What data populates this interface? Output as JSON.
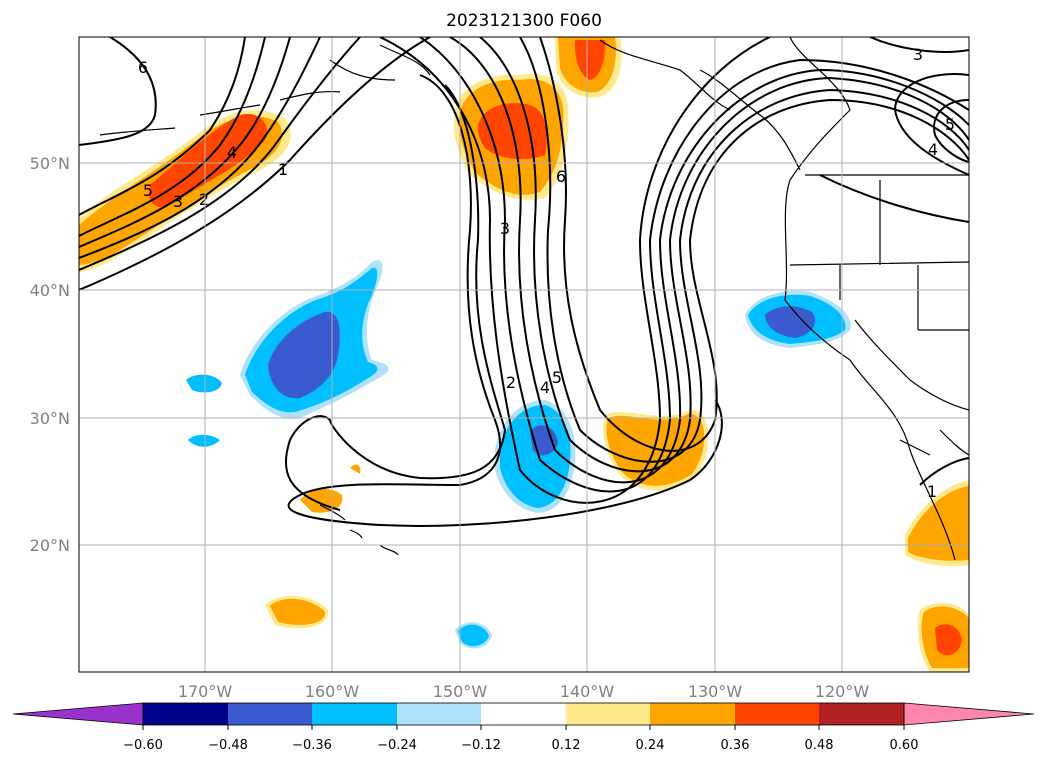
{
  "map": {
    "title": "2023121300 F060",
    "lon_labels": [
      "170°W",
      "160°W",
      "150°W",
      "140°W",
      "130°W",
      "120°W"
    ],
    "lat_labels": [
      "50°N",
      "40°N",
      "30°N",
      "20°N"
    ],
    "colors": {
      "neg_060": "#9a32cd",
      "neg_048": "#00008b",
      "neg_036": "#3a5bcd",
      "neg_024": "#00bfff",
      "neg_012": "#aee2fa",
      "zero": "#ffffff",
      "pos_012": "#ffe98a",
      "pos_024": "#ffa500",
      "pos_036": "#ff4500",
      "pos_048": "#b22222",
      "pos_060": "#ff88aa"
    },
    "contour_labels": [
      "6",
      "5",
      "4",
      "3",
      "2",
      "1",
      "3",
      "6",
      "2",
      "4",
      "5",
      "3",
      "4",
      "5",
      "1"
    ]
  },
  "colorbar": {
    "ticks": [
      "−0.60",
      "−0.48",
      "−0.36",
      "−0.24",
      "−0.12",
      "0.12",
      "0.24",
      "0.36",
      "0.48",
      "0.60"
    ]
  }
}
